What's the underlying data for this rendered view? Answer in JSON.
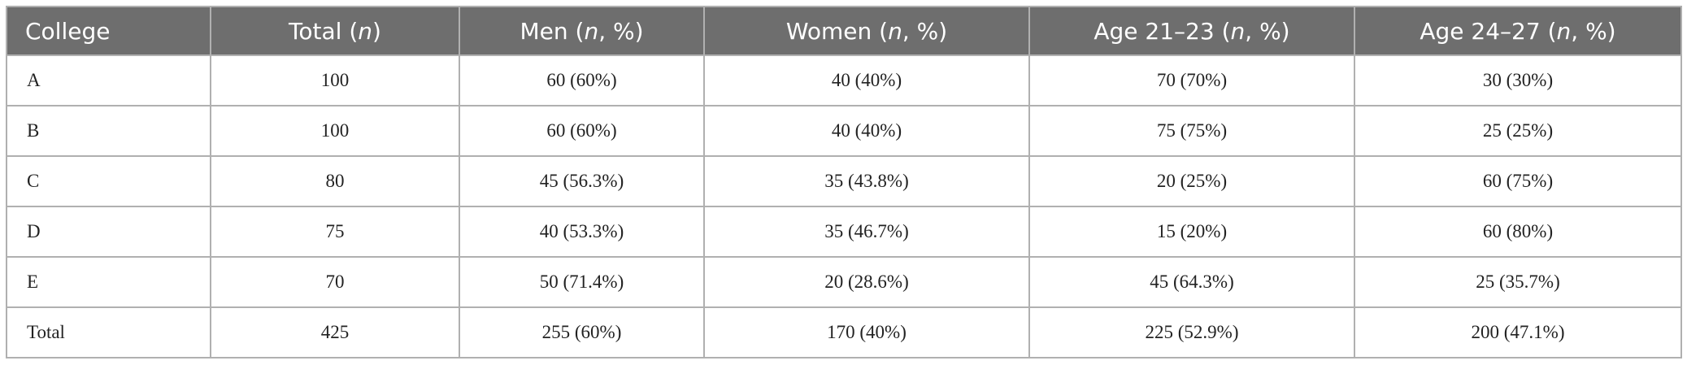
{
  "table": {
    "header": [
      [
        "College"
      ],
      [
        "Total (",
        "n",
        ")"
      ],
      [
        "Men (",
        "n",
        ", %)"
      ],
      [
        "Women (",
        "n",
        ", %)"
      ],
      [
        "Age 21–23 (",
        "n",
        ", %)"
      ],
      [
        "Age 24–27 (",
        "n",
        ", %)"
      ]
    ],
    "rows": [
      [
        "A",
        "100",
        "60 (60%)",
        "40 (40%)",
        "70 (70%)",
        "30 (30%)"
      ],
      [
        "B",
        "100",
        "60 (60%)",
        "40 (40%)",
        "75 (75%)",
        "25 (25%)"
      ],
      [
        "C",
        "80",
        "45 (56.3%)",
        "35 (43.8%)",
        "20 (25%)",
        "60 (75%)"
      ],
      [
        "D",
        "75",
        "40 (53.3%)",
        "35 (46.7%)",
        "15 (20%)",
        "60 (80%)"
      ],
      [
        "E",
        "70",
        "50 (71.4%)",
        "20 (28.6%)",
        "45 (64.3%)",
        "25 (35.7%)"
      ],
      [
        "Total",
        "425",
        "255 (60%)",
        "170 (40%)",
        "225 (52.9%)",
        "200 (47.1%)"
      ]
    ]
  }
}
